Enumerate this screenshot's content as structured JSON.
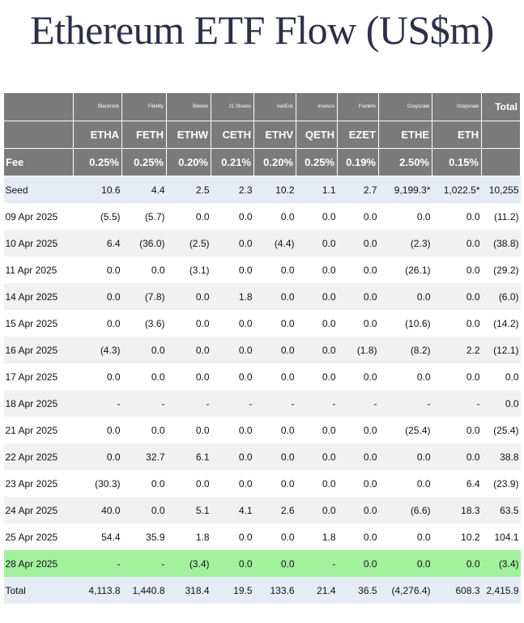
{
  "title": "Ethereum ETF Flow (US$m)",
  "columns": [
    {
      "issuer": "Blackrock",
      "ticker": "ETHA",
      "fee": "0.25%"
    },
    {
      "issuer": "Fidelity",
      "ticker": "FETH",
      "fee": "0.25%"
    },
    {
      "issuer": "Bitwise",
      "ticker": "ETHW",
      "fee": "0.20%"
    },
    {
      "issuer": "21 Shares",
      "ticker": "CETH",
      "fee": "0.21%"
    },
    {
      "issuer": "VanEck",
      "ticker": "ETHV",
      "fee": "0.20%"
    },
    {
      "issuer": "Invesco",
      "ticker": "QETH",
      "fee": "0.25%"
    },
    {
      "issuer": "Franklin",
      "ticker": "EZET",
      "fee": "0.19%"
    },
    {
      "issuer": "Grayscale",
      "ticker": "ETHE",
      "fee": "2.50%"
    },
    {
      "issuer": "Grayscale",
      "ticker": "ETH",
      "fee": "0.15%"
    }
  ],
  "total_header": "Total",
  "fee_label": "Fee",
  "rows": [
    {
      "label": "Seed",
      "style": "seed",
      "cells": [
        "10.6",
        "4.4",
        "2.5",
        "2.3",
        "10.2",
        "1.1",
        "2.7",
        "9,199.3*",
        "1,022.5*",
        "10,255"
      ]
    },
    {
      "label": "09 Apr 2025",
      "style": "",
      "cells": [
        "(5.5)",
        "(5.7)",
        "0.0",
        "0.0",
        "0.0",
        "0.0",
        "0.0",
        "0.0",
        "0.0",
        "(11.2)"
      ]
    },
    {
      "label": "10 Apr 2025",
      "style": "alt",
      "cells": [
        "6.4",
        "(36.0)",
        "(2.5)",
        "0.0",
        "(4.4)",
        "0.0",
        "0.0",
        "(2.3)",
        "0.0",
        "(38.8)"
      ]
    },
    {
      "label": "11 Apr 2025",
      "style": "",
      "cells": [
        "0.0",
        "0.0",
        "(3.1)",
        "0.0",
        "0.0",
        "0.0",
        "0.0",
        "(26.1)",
        "0.0",
        "(29.2)"
      ]
    },
    {
      "label": "14 Apr 2025",
      "style": "alt",
      "cells": [
        "0.0",
        "(7.8)",
        "0.0",
        "1.8",
        "0.0",
        "0.0",
        "0.0",
        "0.0",
        "0.0",
        "(6.0)"
      ]
    },
    {
      "label": "15 Apr 2025",
      "style": "",
      "cells": [
        "0.0",
        "(3.6)",
        "0.0",
        "0.0",
        "0.0",
        "0.0",
        "0.0",
        "(10.6)",
        "0.0",
        "(14.2)"
      ]
    },
    {
      "label": "16 Apr 2025",
      "style": "alt",
      "cells": [
        "(4.3)",
        "0.0",
        "0.0",
        "0.0",
        "0.0",
        "0.0",
        "(1.8)",
        "(8.2)",
        "2.2",
        "(12.1)"
      ]
    },
    {
      "label": "17 Apr 2025",
      "style": "",
      "cells": [
        "0.0",
        "0.0",
        "0.0",
        "0.0",
        "0.0",
        "0.0",
        "0.0",
        "0.0",
        "0.0",
        "0.0"
      ]
    },
    {
      "label": "18 Apr 2025",
      "style": "alt",
      "cells": [
        "-",
        "-",
        "-",
        "-",
        "-",
        "-",
        "-",
        "-",
        "-",
        "0.0"
      ]
    },
    {
      "label": "21 Apr 2025",
      "style": "",
      "cells": [
        "0.0",
        "0.0",
        "0.0",
        "0.0",
        "0.0",
        "0.0",
        "0.0",
        "(25.4)",
        "0.0",
        "(25.4)"
      ]
    },
    {
      "label": "22 Apr 2025",
      "style": "alt",
      "cells": [
        "0.0",
        "32.7",
        "6.1",
        "0.0",
        "0.0",
        "0.0",
        "0.0",
        "0.0",
        "0.0",
        "38.8"
      ]
    },
    {
      "label": "23 Apr 2025",
      "style": "",
      "cells": [
        "(30.3)",
        "0.0",
        "0.0",
        "0.0",
        "0.0",
        "0.0",
        "0.0",
        "0.0",
        "6.4",
        "(23.9)"
      ]
    },
    {
      "label": "24 Apr 2025",
      "style": "alt",
      "cells": [
        "40.0",
        "0.0",
        "5.1",
        "4.1",
        "2.6",
        "0.0",
        "0.0",
        "(6.6)",
        "18.3",
        "63.5"
      ]
    },
    {
      "label": "25 Apr 2025",
      "style": "",
      "cells": [
        "54.4",
        "35.9",
        "1.8",
        "0.0",
        "0.0",
        "1.8",
        "0.0",
        "0.0",
        "10.2",
        "104.1"
      ]
    },
    {
      "label": "28 Apr 2025",
      "style": "highlight",
      "cells": [
        "-",
        "-",
        "(3.4)",
        "0.0",
        "0.0",
        "-",
        "0.0",
        "0.0",
        "0.0",
        "(3.4)"
      ]
    },
    {
      "label": "Total",
      "style": "total",
      "cells": [
        "4,113.8",
        "1,440.8",
        "318.4",
        "19.5",
        "133.6",
        "21.4",
        "36.5",
        "(4,276.4)",
        "608.3",
        "2,415.9"
      ]
    }
  ],
  "colors": {
    "header_bg": "#7b7b7b",
    "negative": "#e3061c",
    "highlight_row": "#a2f29d",
    "seed_total_row": "#e6ecf6",
    "alt_row": "#f1f1f1"
  }
}
